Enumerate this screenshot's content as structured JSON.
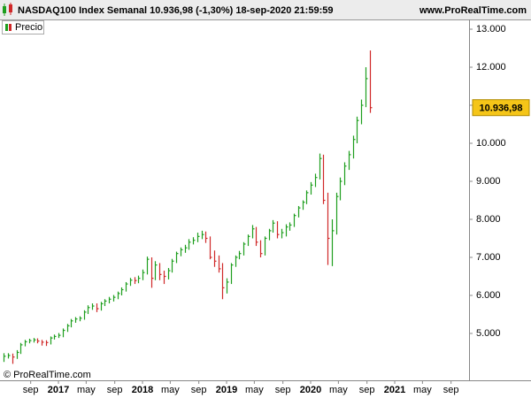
{
  "chart_data": {
    "type": "ohlc",
    "title": "NASDAQ100 Index Semanal 10.936,98 (-1,30%) 18-sep-2020 21:59:59",
    "site": "www.ProRealTime.com",
    "watermark": "© ProRealTime.com",
    "legend": "Precio",
    "up_color": "#1e9e1e",
    "down_color": "#d02828",
    "last_price": {
      "value": 10936.98,
      "label": "10.936,98"
    },
    "x": [
      2016.35,
      2016.4,
      2016.45,
      2016.5,
      2016.55,
      2016.6,
      2016.65,
      2016.7,
      2016.75,
      2016.8,
      2016.85,
      2016.9,
      2016.95,
      2017.0,
      2017.05,
      2017.1,
      2017.15,
      2017.2,
      2017.25,
      2017.3,
      2017.35,
      2017.4,
      2017.45,
      2017.5,
      2017.55,
      2017.6,
      2017.65,
      2017.7,
      2017.75,
      2017.8,
      2017.85,
      2017.9,
      2017.95,
      2018.0,
      2018.05,
      2018.1,
      2018.15,
      2018.2,
      2018.25,
      2018.3,
      2018.35,
      2018.4,
      2018.45,
      2018.5,
      2018.55,
      2018.6,
      2018.65,
      2018.7,
      2018.75,
      2018.8,
      2018.85,
      2018.9,
      2018.95,
      2019.0,
      2019.05,
      2019.1,
      2019.15,
      2019.2,
      2019.25,
      2019.3,
      2019.35,
      2019.4,
      2019.45,
      2019.5,
      2019.55,
      2019.6,
      2019.65,
      2019.7,
      2019.75,
      2019.8,
      2019.85,
      2019.9,
      2019.95,
      2020.0,
      2020.05,
      2020.1,
      2020.15,
      2020.2,
      2020.25,
      2020.3,
      2020.35,
      2020.4,
      2020.45,
      2020.5,
      2020.55,
      2020.6,
      2020.65,
      2020.7
    ],
    "close": [
      4400,
      4420,
      4380,
      4500,
      4700,
      4780,
      4810,
      4830,
      4800,
      4770,
      4760,
      4880,
      4920,
      4950,
      5080,
      5200,
      5330,
      5380,
      5400,
      5560,
      5680,
      5720,
      5650,
      5780,
      5850,
      5900,
      5950,
      6050,
      6150,
      6300,
      6400,
      6390,
      6450,
      6600,
      6950,
      6450,
      6800,
      6550,
      6500,
      6650,
      6900,
      7100,
      7200,
      7250,
      7400,
      7450,
      7550,
      7600,
      7500,
      7000,
      6900,
      6700,
      6200,
      6350,
      6800,
      7000,
      7100,
      7350,
      7550,
      7750,
      7400,
      7100,
      7500,
      7700,
      7900,
      7600,
      7650,
      7800,
      7850,
      8100,
      8300,
      8450,
      8700,
      8900,
      9100,
      9600,
      8500,
      7500,
      7700,
      8600,
      9000,
      9400,
      9700,
      10100,
      10600,
      11000,
      11700,
      10937
    ],
    "high": [
      4480,
      4480,
      4470,
      4560,
      4750,
      4830,
      4860,
      4880,
      4870,
      4830,
      4820,
      4920,
      4970,
      5010,
      5130,
      5250,
      5380,
      5430,
      5450,
      5610,
      5740,
      5790,
      5790,
      5830,
      5900,
      5960,
      6010,
      6100,
      6210,
      6350,
      6460,
      6480,
      6520,
      6680,
      7020,
      7000,
      6900,
      6850,
      6650,
      6720,
      6960,
      7150,
      7260,
      7330,
      7480,
      7530,
      7650,
      7700,
      7680,
      7550,
      7180,
      7050,
      6850,
      6450,
      6850,
      7050,
      7170,
      7400,
      7600,
      7850,
      7800,
      7450,
      7550,
      7750,
      7980,
      7950,
      7750,
      7870,
      7920,
      8150,
      8350,
      8500,
      8760,
      8980,
      9200,
      9730,
      9700,
      8700,
      8000,
      8700,
      9100,
      9500,
      9800,
      10200,
      10700,
      11150,
      12000,
      12440
    ],
    "low": [
      4250,
      4340,
      4200,
      4330,
      4460,
      4660,
      4740,
      4760,
      4740,
      4680,
      4670,
      4710,
      4840,
      4880,
      4900,
      5040,
      5160,
      5280,
      5320,
      5360,
      5510,
      5620,
      5560,
      5600,
      5720,
      5790,
      5840,
      5900,
      6000,
      6100,
      6250,
      6300,
      6320,
      6400,
      6550,
      6200,
      6400,
      6400,
      6300,
      6420,
      6600,
      6850,
      7030,
      7120,
      7200,
      7340,
      7400,
      7480,
      7380,
      6950,
      6750,
      6600,
      5900,
      6050,
      6300,
      6750,
      6950,
      7050,
      7300,
      7500,
      7300,
      7000,
      7050,
      7450,
      7650,
      7500,
      7500,
      7550,
      7700,
      7800,
      8050,
      8250,
      8400,
      8650,
      8850,
      9050,
      8400,
      6800,
      6770,
      7600,
      8500,
      8900,
      9300,
      9600,
      10000,
      10500,
      10950,
      10800
    ],
    "xlim": [
      2016.305,
      2021.884
    ],
    "ylim": [
      3767,
      13256
    ],
    "xticks": [
      {
        "value": 2016.67,
        "label": "sep"
      },
      {
        "value": 2017,
        "label": "2017"
      },
      {
        "value": 2017.33,
        "label": "may"
      },
      {
        "value": 2017.67,
        "label": "sep"
      },
      {
        "value": 2018,
        "label": "2018"
      },
      {
        "value": 2018.33,
        "label": "may"
      },
      {
        "value": 2018.67,
        "label": "sep"
      },
      {
        "value": 2019,
        "label": "2019"
      },
      {
        "value": 2019.33,
        "label": "may"
      },
      {
        "value": 2019.67,
        "label": "sep"
      },
      {
        "value": 2020,
        "label": "2020"
      },
      {
        "value": 2020.33,
        "label": "may"
      },
      {
        "value": 2020.67,
        "label": "sep"
      },
      {
        "value": 2021,
        "label": "2021"
      },
      {
        "value": 2021.33,
        "label": "may"
      },
      {
        "value": 2021.67,
        "label": "sep"
      }
    ],
    "yticks": [
      {
        "value": 5000,
        "label": "5.000"
      },
      {
        "value": 6000,
        "label": "6.000"
      },
      {
        "value": 7000,
        "label": "7.000"
      },
      {
        "value": 8000,
        "label": "8.000"
      },
      {
        "value": 9000,
        "label": "9.000"
      },
      {
        "value": 10000,
        "label": "10.000"
      },
      {
        "value": 11000,
        "label": "11.000"
      },
      {
        "value": 12000,
        "label": "12.000"
      },
      {
        "value": 13000,
        "label": "13.000"
      }
    ]
  }
}
